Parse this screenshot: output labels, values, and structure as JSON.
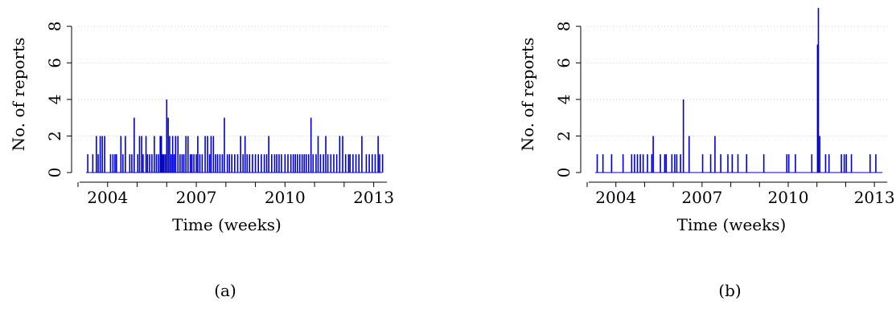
{
  "chart_data": [
    {
      "type": "bar",
      "caption": "(a)",
      "xlabel": "Time (weeks)",
      "ylabel": "No. of reports",
      "xticks": [
        "2004",
        "2007",
        "2010",
        "2013"
      ],
      "yticks": [
        0,
        2,
        4,
        6,
        8
      ],
      "ylim": [
        0,
        9
      ],
      "xlim": [
        2003.0,
        2013.5
      ],
      "grid": true,
      "x": [
        2003.33,
        2003.5,
        2003.62,
        2003.68,
        2003.75,
        2003.82,
        2003.9,
        2004.1,
        2004.18,
        2004.25,
        2004.3,
        2004.45,
        2004.52,
        2004.6,
        2004.75,
        2004.82,
        2004.9,
        2005.02,
        2005.08,
        2005.15,
        2005.2,
        2005.3,
        2005.35,
        2005.42,
        2005.5,
        2005.58,
        2005.65,
        2005.72,
        2005.78,
        2005.82,
        2005.86,
        2005.9,
        2005.95,
        2006.0,
        2006.05,
        2006.1,
        2006.15,
        2006.2,
        2006.25,
        2006.3,
        2006.38,
        2006.45,
        2006.52,
        2006.58,
        2006.65,
        2006.72,
        2006.8,
        2006.85,
        2006.92,
        2007.0,
        2007.05,
        2007.12,
        2007.2,
        2007.3,
        2007.38,
        2007.45,
        2007.5,
        2007.58,
        2007.65,
        2007.72,
        2007.8,
        2007.88,
        2007.95,
        2008.05,
        2008.12,
        2008.2,
        2008.3,
        2008.4,
        2008.5,
        2008.58,
        2008.65,
        2008.72,
        2008.8,
        2008.9,
        2009.0,
        2009.1,
        2009.2,
        2009.3,
        2009.38,
        2009.45,
        2009.55,
        2009.65,
        2009.72,
        2009.8,
        2009.88,
        2010.0,
        2010.1,
        2010.2,
        2010.28,
        2010.35,
        2010.42,
        2010.5,
        2010.58,
        2010.65,
        2010.72,
        2010.8,
        2010.88,
        2010.95,
        2011.05,
        2011.12,
        2011.2,
        2011.3,
        2011.38,
        2011.45,
        2011.55,
        2011.65,
        2011.75,
        2011.85,
        2011.95,
        2012.05,
        2012.15,
        2012.2,
        2012.3,
        2012.4,
        2012.5,
        2012.6,
        2012.75,
        2012.85,
        2012.95,
        2013.05,
        2013.15,
        2013.2,
        2013.3
      ],
      "values": [
        1,
        1,
        2,
        1,
        2,
        2,
        2,
        1,
        1,
        1,
        1,
        2,
        1,
        2,
        1,
        1,
        3,
        1,
        2,
        2,
        1,
        2,
        1,
        1,
        1,
        2,
        1,
        1,
        2,
        2,
        1,
        1,
        1,
        4,
        3,
        2,
        1,
        2,
        1,
        2,
        2,
        1,
        1,
        1,
        2,
        2,
        1,
        1,
        1,
        1,
        2,
        1,
        1,
        2,
        2,
        1,
        2,
        2,
        1,
        1,
        1,
        1,
        3,
        1,
        1,
        1,
        1,
        1,
        2,
        1,
        2,
        1,
        1,
        1,
        1,
        1,
        1,
        1,
        1,
        2,
        1,
        1,
        1,
        1,
        1,
        1,
        1,
        1,
        1,
        1,
        1,
        1,
        1,
        1,
        1,
        1,
        3,
        1,
        1,
        2,
        1,
        1,
        2,
        1,
        1,
        1,
        1,
        2,
        2,
        1,
        1,
        1,
        1,
        1,
        1,
        2,
        1,
        1,
        1,
        1,
        2,
        1,
        1
      ],
      "color": "#0000cc"
    },
    {
      "type": "bar",
      "caption": "(b)",
      "xlabel": "Time (weeks)",
      "ylabel": "No. of reports",
      "xticks": [
        "2004",
        "2007",
        "2010",
        "2013"
      ],
      "yticks": [
        0,
        2,
        4,
        6,
        8
      ],
      "ylim": [
        0,
        9
      ],
      "xlim": [
        2003.0,
        2013.5
      ],
      "grid": true,
      "x": [
        2003.35,
        2003.55,
        2003.85,
        2004.25,
        2004.55,
        2004.65,
        2004.75,
        2004.85,
        2004.95,
        2005.1,
        2005.25,
        2005.3,
        2005.55,
        2005.7,
        2005.75,
        2005.95,
        2006.05,
        2006.12,
        2006.25,
        2006.35,
        2006.55,
        2007.02,
        2007.3,
        2007.45,
        2007.65,
        2007.9,
        2008.05,
        2008.25,
        2008.55,
        2009.15,
        2009.95,
        2010.02,
        2010.25,
        2010.82,
        2011.02,
        2011.05,
        2011.1,
        2011.3,
        2011.42,
        2011.85,
        2011.95,
        2012.02,
        2012.2,
        2012.85,
        2013.05
      ],
      "values": [
        1,
        1,
        1,
        1,
        1,
        1,
        1,
        1,
        1,
        1,
        1,
        2,
        1,
        1,
        1,
        1,
        1,
        1,
        1,
        4,
        2,
        1,
        1,
        2,
        1,
        1,
        1,
        1,
        1,
        1,
        1,
        1,
        1,
        1,
        7,
        9,
        2,
        1,
        1,
        1,
        1,
        1,
        1,
        1,
        1
      ],
      "color": "#0000cc"
    }
  ]
}
